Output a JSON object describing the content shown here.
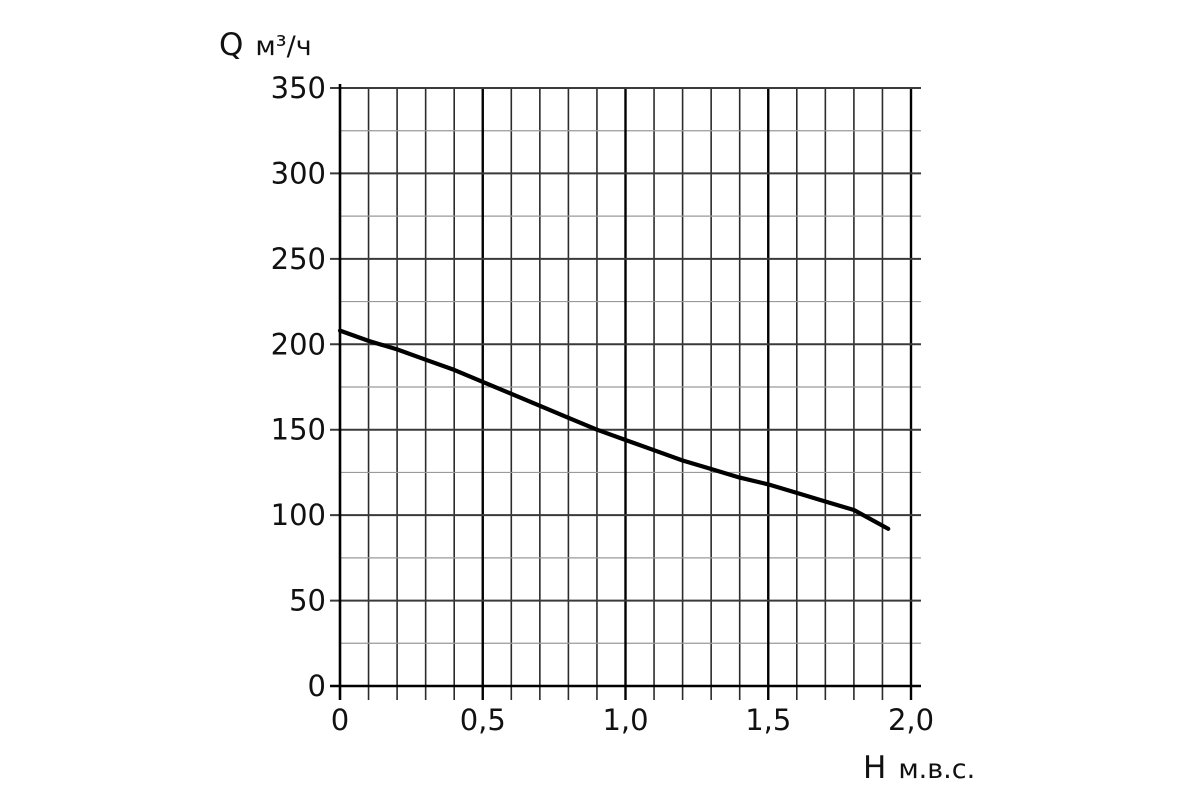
{
  "chart_data": {
    "type": "line",
    "xlabel": "H",
    "xunit": "м.в.с.",
    "ylabel": "Q",
    "yunit": "м³/ч",
    "xlim": [
      0,
      2.0
    ],
    "ylim": [
      0,
      350
    ],
    "x_ticks": [
      "0",
      "0,5",
      "1,0",
      "1,5",
      "2,0"
    ],
    "y_ticks": [
      "0",
      "50",
      "100",
      "150",
      "200",
      "250",
      "300",
      "350"
    ],
    "grid": true,
    "x_minor_step": 0.1,
    "y_minor_step": 25,
    "line_color": "#000000",
    "grid_color": "#2b2b2b",
    "series": [
      {
        "x": [
          0,
          0.1,
          0.2,
          0.3,
          0.4,
          0.5,
          0.6,
          0.7,
          0.8,
          0.9,
          1.0,
          1.1,
          1.2,
          1.3,
          1.4,
          1.5,
          1.6,
          1.7,
          1.8,
          1.92
        ],
        "values": [
          208,
          202,
          197,
          191,
          185,
          178,
          171,
          164,
          157,
          150,
          144,
          138,
          132,
          127,
          122,
          118,
          113,
          108,
          103,
          92
        ]
      }
    ]
  }
}
